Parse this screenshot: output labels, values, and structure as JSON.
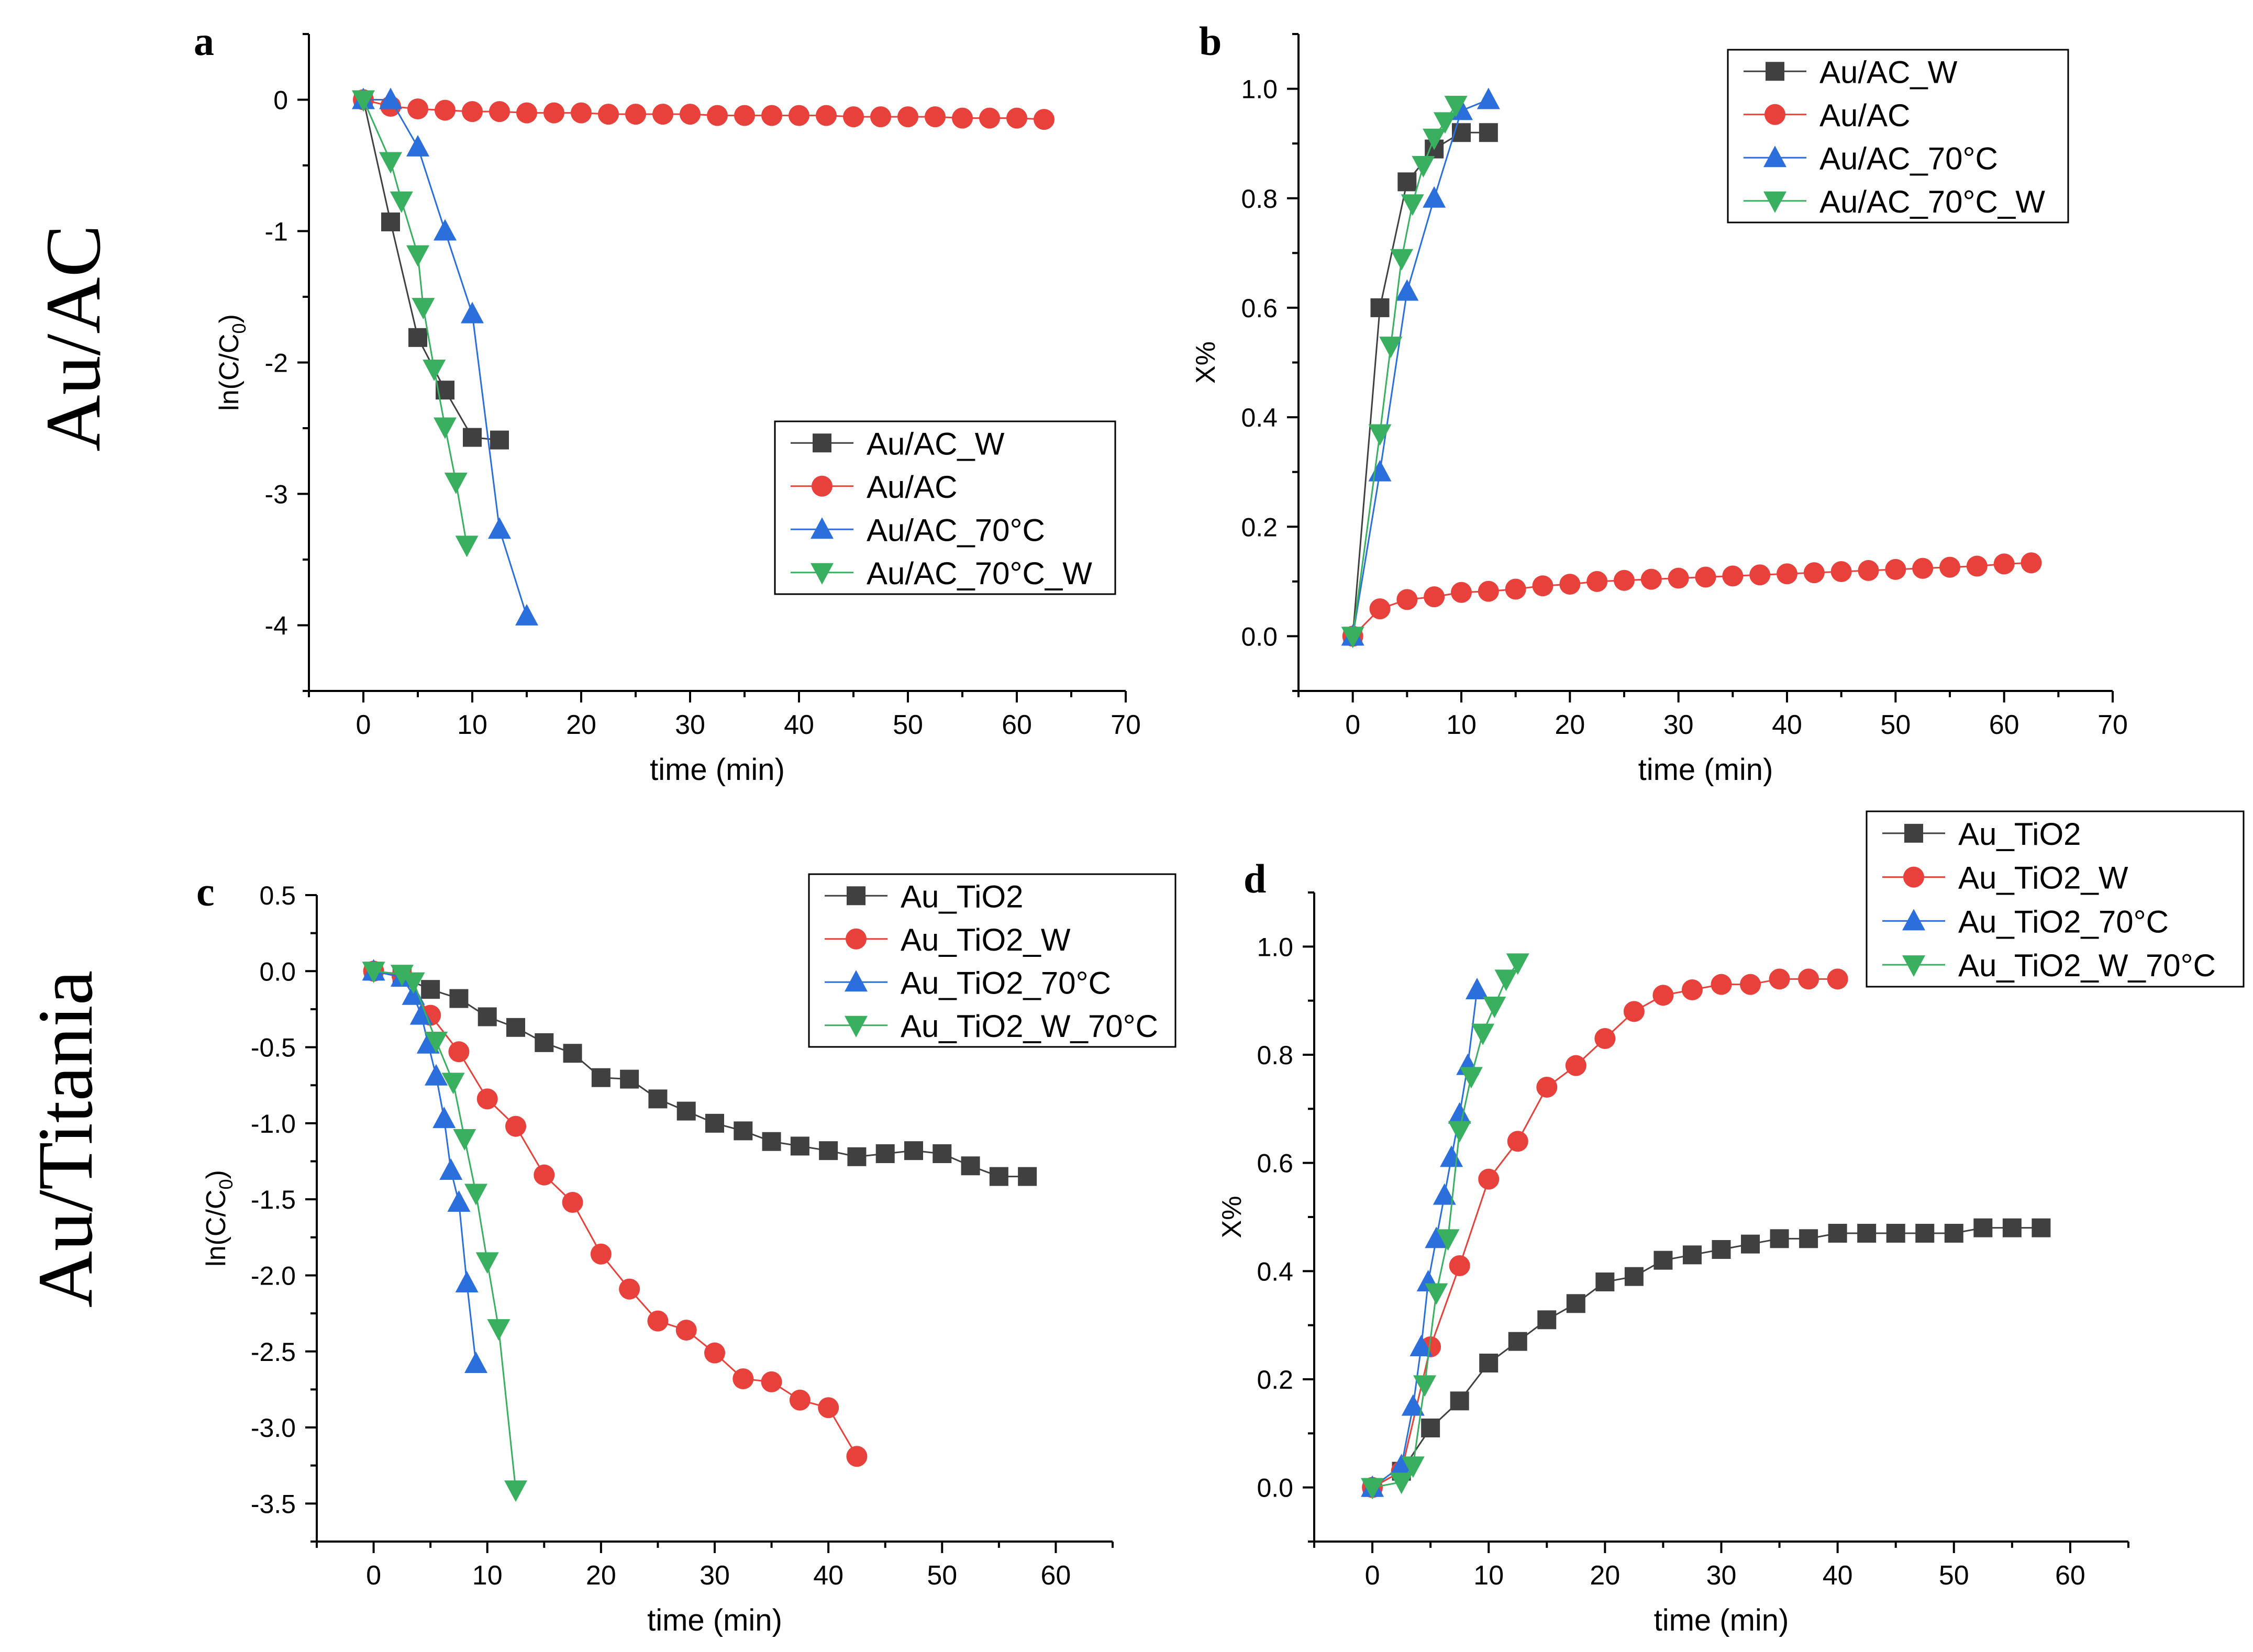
{
  "row_labels": {
    "top": "Au/AC",
    "bottom": "Au/Titania"
  },
  "colors": {
    "black": "#404040",
    "red": "#e8403a",
    "blue": "#2a6fdb",
    "green": "#38b060"
  },
  "chart_data": [
    {
      "panel": "a",
      "type": "line",
      "xlabel": "time (min)",
      "ylabel": "ln(C/C0)",
      "xlim": [
        -5,
        70
      ],
      "ylim": [
        -4.5,
        0.5
      ],
      "xticks": [
        0,
        10,
        20,
        30,
        40,
        50,
        60,
        70
      ],
      "xtick_labels": [
        "0",
        "10",
        "20",
        "30",
        "40",
        "50",
        "60",
        "70"
      ],
      "yticks": [
        0,
        -1,
        -2,
        -3,
        -4
      ],
      "ytick_labels": [
        "0",
        "-1",
        "-2",
        "-3",
        "-4"
      ],
      "legend_position": "center-right",
      "series": [
        {
          "name": "Au/AC_W",
          "color": "#404040",
          "marker": "square",
          "x": [
            0,
            2.5,
            5,
            7.5,
            10,
            12.5
          ],
          "y": [
            0,
            -0.93,
            -1.81,
            -2.21,
            -2.57,
            -2.59
          ]
        },
        {
          "name": "Au/AC",
          "color": "#e8403a",
          "marker": "circle",
          "x": [
            0,
            2.5,
            5,
            7.5,
            10,
            12.5,
            15,
            17.5,
            20,
            22.5,
            25,
            27.5,
            30,
            32.5,
            35,
            37.5,
            40,
            42.5,
            45,
            47.5,
            50,
            52.5,
            55,
            57.5,
            60,
            62.5
          ],
          "y": [
            0,
            -0.05,
            -0.07,
            -0.08,
            -0.09,
            -0.09,
            -0.1,
            -0.1,
            -0.1,
            -0.11,
            -0.11,
            -0.11,
            -0.11,
            -0.12,
            -0.12,
            -0.12,
            -0.12,
            -0.12,
            -0.13,
            -0.13,
            -0.13,
            -0.13,
            -0.14,
            -0.14,
            -0.14,
            -0.15
          ]
        },
        {
          "name": "Au/AC_70°C",
          "color": "#2a6fdb",
          "marker": "triangle-up",
          "x": [
            0,
            2.5,
            5,
            7.5,
            10,
            12.5,
            15
          ],
          "y": [
            0,
            0,
            -0.36,
            -1,
            -1.63,
            -3.27,
            -3.93
          ]
        },
        {
          "name": "Au/AC_70°C_W",
          "color": "#38b060",
          "marker": "triangle-down",
          "x": [
            0,
            2.5,
            3.5,
            5,
            5.5,
            6.5,
            7.5,
            8.5,
            9.5
          ],
          "y": [
            0,
            -0.47,
            -0.77,
            -1.18,
            -1.58,
            -2.05,
            -2.49,
            -2.91,
            -3.39
          ]
        }
      ]
    },
    {
      "panel": "b",
      "type": "line",
      "xlabel": "time (min)",
      "ylabel": "X%",
      "xlim": [
        -5,
        70
      ],
      "ylim": [
        -0.1,
        1.1
      ],
      "xticks": [
        0,
        10,
        20,
        30,
        40,
        50,
        60,
        70
      ],
      "xtick_labels": [
        "0",
        "10",
        "20",
        "30",
        "40",
        "50",
        "60",
        "70"
      ],
      "yticks": [
        0,
        0.2,
        0.4,
        0.6,
        0.8,
        1.0
      ],
      "ytick_labels": [
        "0.0",
        "0.2",
        "0.4",
        "0.6",
        "0.8",
        "1.0"
      ],
      "legend_position": "top-right",
      "series": [
        {
          "name": "Au/AC_W",
          "color": "#404040",
          "marker": "square",
          "x": [
            0,
            2.5,
            5,
            7.5,
            10,
            12.5
          ],
          "y": [
            0,
            0.6,
            0.83,
            0.89,
            0.92,
            0.92
          ]
        },
        {
          "name": "Au/AC",
          "color": "#e8403a",
          "marker": "circle",
          "x": [
            0,
            2.5,
            5,
            7.5,
            10,
            12.5,
            15,
            17.5,
            20,
            22.5,
            25,
            27.5,
            30,
            32.5,
            35,
            37.5,
            40,
            42.5,
            45,
            47.5,
            50,
            52.5,
            55,
            57.5,
            60,
            62.5
          ],
          "y": [
            0,
            0.05,
            0.067,
            0.072,
            0.08,
            0.082,
            0.086,
            0.092,
            0.095,
            0.1,
            0.102,
            0.104,
            0.106,
            0.108,
            0.11,
            0.112,
            0.114,
            0.116,
            0.118,
            0.12,
            0.122,
            0.124,
            0.126,
            0.128,
            0.132,
            0.134
          ]
        },
        {
          "name": "Au/AC_70°C",
          "color": "#2a6fdb",
          "marker": "triangle-up",
          "x": [
            0,
            2.5,
            5,
            7.5,
            10,
            12.5
          ],
          "y": [
            0,
            0.3,
            0.63,
            0.8,
            0.96,
            0.98
          ]
        },
        {
          "name": "Au/AC_70°C_W",
          "color": "#38b060",
          "marker": "triangle-down",
          "x": [
            0,
            2.5,
            3.5,
            4.5,
            5.5,
            6.5,
            7.5,
            8.5,
            9.5
          ],
          "y": [
            0,
            0.37,
            0.53,
            0.69,
            0.79,
            0.86,
            0.91,
            0.94,
            0.97
          ]
        }
      ]
    },
    {
      "panel": "c",
      "type": "line",
      "xlabel": "time (min)",
      "ylabel": "ln(C/C0)",
      "xlim": [
        -5,
        65
      ],
      "ylim": [
        -3.75,
        0.5
      ],
      "xticks": [
        0,
        10,
        20,
        30,
        40,
        50,
        60
      ],
      "xtick_labels": [
        "0",
        "10",
        "20",
        "30",
        "40",
        "50",
        "60"
      ],
      "yticks": [
        0.5,
        0,
        -0.5,
        -1,
        -1.5,
        -2,
        -2.5,
        -3,
        -3.5
      ],
      "ytick_labels": [
        "0.5",
        "0.0",
        "-0.5",
        "-1.0",
        "-1.5",
        "-2.0",
        "-2.5",
        "-3.0",
        "-3.5"
      ],
      "legend_position": "top-right",
      "series": [
        {
          "name": "Au_TiO2",
          "color": "#404040",
          "marker": "square",
          "x": [
            0,
            2.5,
            5,
            7.5,
            10,
            12.5,
            15,
            17.5,
            20,
            22.5,
            25,
            27.5,
            30,
            32.5,
            35,
            37.5,
            40,
            42.5,
            45,
            47.5,
            50,
            52.5,
            55,
            57.5
          ],
          "y": [
            0,
            -0.04,
            -0.12,
            -0.18,
            -0.3,
            -0.37,
            -0.47,
            -0.54,
            -0.7,
            -0.71,
            -0.84,
            -0.92,
            -1,
            -1.05,
            -1.12,
            -1.15,
            -1.18,
            -1.22,
            -1.2,
            -1.18,
            -1.2,
            -1.28,
            -1.35,
            -1.35
          ]
        },
        {
          "name": "Au_TiO2_W",
          "color": "#e8403a",
          "marker": "circle",
          "x": [
            0,
            2.5,
            5,
            7.5,
            10,
            12.5,
            15,
            17.5,
            20,
            22.5,
            25,
            27.5,
            30,
            32.5,
            35,
            37.5,
            40,
            42.5
          ],
          "y": [
            0,
            -0.03,
            -0.29,
            -0.53,
            -0.84,
            -1.02,
            -1.34,
            -1.52,
            -1.86,
            -2.09,
            -2.3,
            -2.36,
            -2.51,
            -2.68,
            -2.7,
            -2.82,
            -2.87,
            -3.19
          ]
        },
        {
          "name": "Au_TiO2_70°C",
          "color": "#2a6fdb",
          "marker": "triangle-up",
          "x": [
            0,
            2.5,
            3.5,
            4.2,
            4.8,
            5.5,
            6.2,
            6.8,
            7.5,
            8.2,
            9
          ],
          "y": [
            0,
            -0.04,
            -0.16,
            -0.29,
            -0.48,
            -0.69,
            -0.97,
            -1.31,
            -1.52,
            -2.05,
            -2.58
          ]
        },
        {
          "name": "Au_TiO2_W_70°C",
          "color": "#38b060",
          "marker": "triangle-down",
          "x": [
            0,
            2.5,
            3.5,
            5.5,
            7,
            8,
            9,
            10,
            11,
            12.5
          ],
          "y": [
            0,
            -0.02,
            -0.07,
            -0.46,
            -0.73,
            -1.1,
            -1.46,
            -1.91,
            -2.35,
            -3.41
          ]
        }
      ]
    },
    {
      "panel": "d",
      "type": "line",
      "xlabel": "time (min)",
      "ylabel": "X%",
      "xlim": [
        -5,
        65
      ],
      "ylim": [
        -0.1,
        1.1
      ],
      "xticks": [
        0,
        10,
        20,
        30,
        40,
        50,
        60
      ],
      "xtick_labels": [
        "0",
        "10",
        "20",
        "30",
        "40",
        "50",
        "60"
      ],
      "yticks": [
        0,
        0.2,
        0.4,
        0.6,
        0.8,
        1.0
      ],
      "ytick_labels": [
        "0.0",
        "0.2",
        "0.4",
        "0.6",
        "0.8",
        "1.0"
      ],
      "legend_position": "top-right",
      "series": [
        {
          "name": "Au_TiO2",
          "color": "#404040",
          "marker": "square",
          "x": [
            0,
            2.5,
            5,
            7.5,
            10,
            12.5,
            15,
            17.5,
            20,
            22.5,
            25,
            27.5,
            30,
            32.5,
            35,
            37.5,
            40,
            42.5,
            45,
            47.5,
            50,
            52.5,
            55,
            57.5
          ],
          "y": [
            0,
            0.03,
            0.11,
            0.16,
            0.23,
            0.27,
            0.31,
            0.34,
            0.38,
            0.39,
            0.42,
            0.43,
            0.44,
            0.45,
            0.46,
            0.46,
            0.47,
            0.47,
            0.47,
            0.47,
            0.47,
            0.48,
            0.48,
            0.48
          ]
        },
        {
          "name": "Au_TiO2_W",
          "color": "#e8403a",
          "marker": "circle",
          "x": [
            0,
            2.5,
            5,
            7.5,
            10,
            12.5,
            15,
            17.5,
            20,
            22.5,
            25,
            27.5,
            30,
            32.5,
            35,
            37.5,
            40
          ],
          "y": [
            0,
            0.03,
            0.26,
            0.41,
            0.57,
            0.64,
            0.74,
            0.78,
            0.83,
            0.88,
            0.91,
            0.92,
            0.93,
            0.93,
            0.94,
            0.94,
            0.94
          ]
        },
        {
          "name": "Au_TiO2_70°C",
          "color": "#2a6fdb",
          "marker": "triangle-up",
          "x": [
            0,
            2.5,
            3.5,
            4.2,
            4.8,
            5.5,
            6.2,
            6.8,
            7.5,
            8.2,
            9
          ],
          "y": [
            0,
            0.04,
            0.15,
            0.26,
            0.38,
            0.46,
            0.54,
            0.61,
            0.69,
            0.78,
            0.92
          ]
        },
        {
          "name": "Au_TiO2_W_70°C",
          "color": "#38b060",
          "marker": "triangle-down",
          "x": [
            0,
            2.5,
            3.5,
            4.5,
            5.5,
            6.5,
            7.5,
            8.5,
            9.5,
            10.5,
            11.5,
            12.5
          ],
          "y": [
            0,
            0.01,
            0.04,
            0.19,
            0.36,
            0.46,
            0.66,
            0.76,
            0.84,
            0.89,
            0.94,
            0.97
          ]
        }
      ]
    }
  ]
}
